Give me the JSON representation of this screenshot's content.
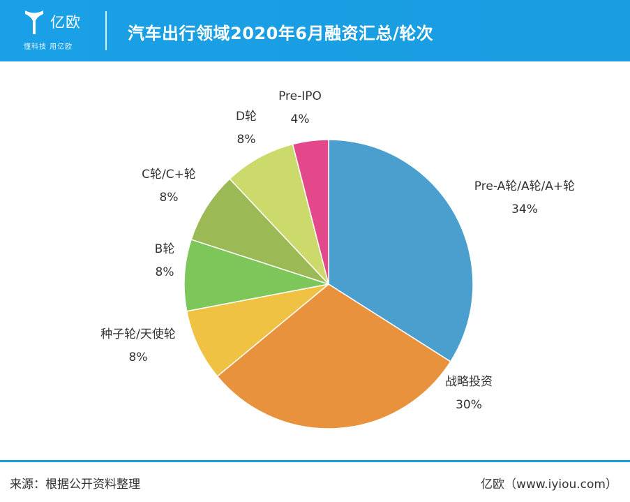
{
  "header": {
    "logo_name": "亿欧",
    "logo_tagline": "懂科技 用亿欧",
    "title": "汽车出行领域2020年6月融资汇总/轮次"
  },
  "colors": {
    "header_bg": "#1a9ce0",
    "accent": "#1a9ce0"
  },
  "chart_data": {
    "type": "pie",
    "title": "汽车出行领域2020年6月融资汇总/轮次",
    "start_angle_deg": 0,
    "direction": "clockwise",
    "slices": [
      {
        "label": "Pre-A轮/A轮/A+轮",
        "value": 34,
        "value_label": "34%",
        "color": "#4b9fcf"
      },
      {
        "label": "战略投资",
        "value": 30,
        "value_label": "30%",
        "color": "#e9923d"
      },
      {
        "label": "种子轮/天使轮",
        "value": 8,
        "value_label": "8%",
        "color": "#efc244"
      },
      {
        "label": "B轮",
        "value": 8,
        "value_label": "8%",
        "color": "#7dc65a"
      },
      {
        "label": "C轮/C+轮",
        "value": 8,
        "value_label": "8%",
        "color": "#9bb954"
      },
      {
        "label": "D轮",
        "value": 8,
        "value_label": "8%",
        "color": "#cbda6a"
      },
      {
        "label": "Pre-IPO",
        "value": 4,
        "value_label": "4%",
        "color": "#e2488a"
      }
    ]
  },
  "footer": {
    "source": "来源：根据公开资料整理",
    "site": "亿欧（www.iyiou.com）"
  }
}
